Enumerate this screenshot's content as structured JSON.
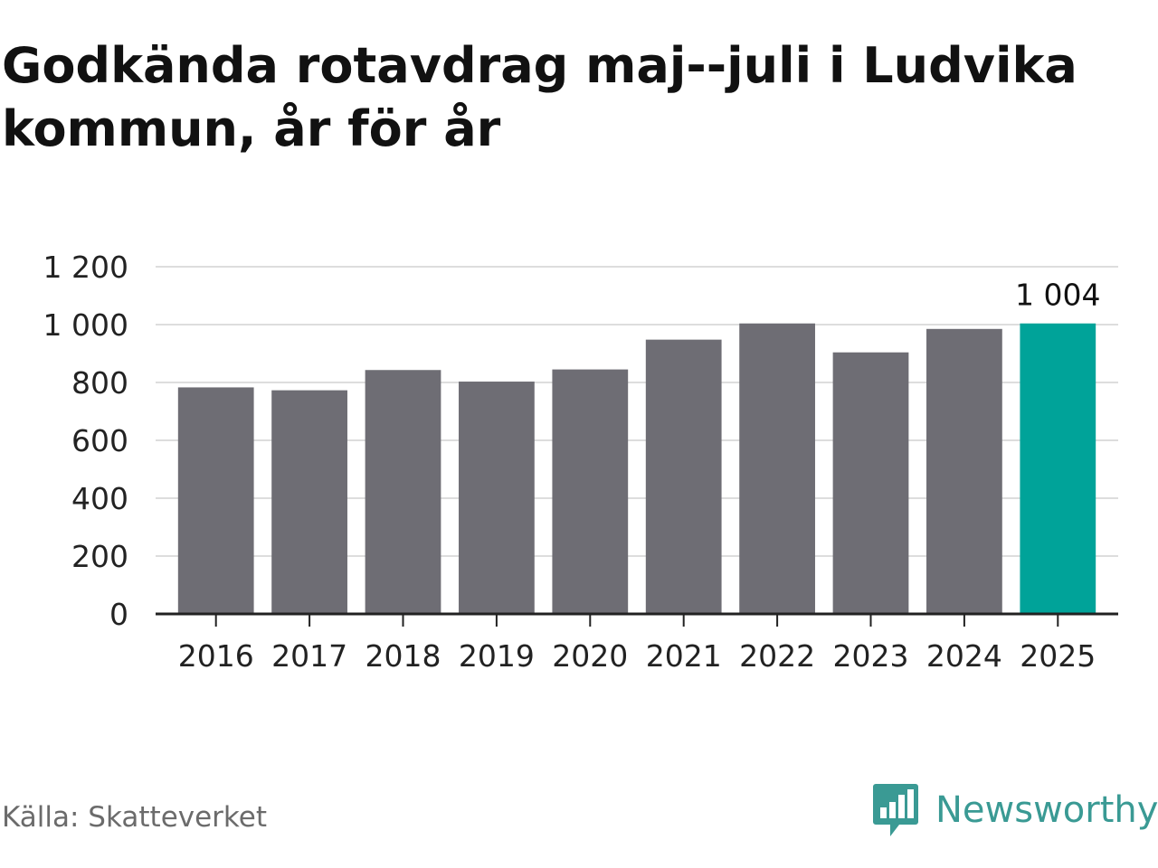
{
  "title": "Godkända rotavdrag maj--juli i Ludvika kommun, år för år",
  "source": "Källa: Skatteverket",
  "brand": {
    "name": "Newsworthy",
    "icon": "newsworthy-logo-icon",
    "color": "#3a9a94"
  },
  "chart_data": {
    "type": "bar",
    "categories": [
      "2016",
      "2017",
      "2018",
      "2019",
      "2020",
      "2021",
      "2022",
      "2023",
      "2024",
      "2025"
    ],
    "values": [
      783,
      773,
      843,
      803,
      845,
      948,
      1004,
      904,
      985,
      1004
    ],
    "ylim": [
      0,
      1200
    ],
    "yticks": [
      0,
      200,
      400,
      600,
      800,
      1000,
      1200
    ],
    "ytick_labels": [
      "0",
      "200",
      "400",
      "600",
      "800",
      "1 000",
      "1 200"
    ],
    "highlight_index": 9,
    "data_labels": [
      {
        "index": 9,
        "text": "1 004"
      }
    ],
    "colors": {
      "bar": "#6e6d74",
      "highlight": "#00a399",
      "grid": "#dddddd",
      "axis": "#222222"
    },
    "grid": true,
    "xlabel": "",
    "ylabel": ""
  }
}
